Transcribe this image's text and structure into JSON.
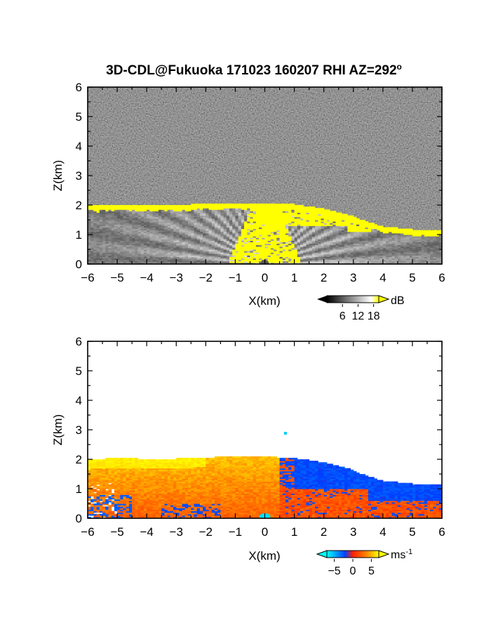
{
  "figure": {
    "title": "3D-CDL@Fukuoka 171023 160207 RHI AZ=292",
    "title_superscript": "o"
  },
  "chart_data": [
    {
      "type": "heatmap",
      "panel": "top",
      "quantity": "backscatter intensity",
      "xlabel": "X(km)",
      "ylabel": "Z(km)",
      "xlim": [
        -6,
        6
      ],
      "ylim": [
        0,
        6
      ],
      "xticks": [
        -6,
        -5,
        -4,
        -3,
        -2,
        -1,
        0,
        1,
        2,
        3,
        4,
        5,
        6
      ],
      "yticks": [
        0,
        1,
        2,
        3,
        4,
        5,
        6
      ],
      "colorbar": {
        "unit": "dB",
        "ticks": [
          6,
          12,
          18
        ],
        "range": [
          0,
          20
        ],
        "colors": [
          "#000000",
          "#ffffff",
          "#ffff00"
        ]
      },
      "echo_top_km": [
        [
          -6,
          1.95
        ],
        [
          -5,
          2.0
        ],
        [
          -4,
          1.97
        ],
        [
          -3,
          1.98
        ],
        [
          -2,
          2.02
        ],
        [
          -1,
          2.05
        ],
        [
          0,
          2.05
        ],
        [
          1,
          2.0
        ],
        [
          2,
          1.85
        ],
        [
          3,
          1.6
        ],
        [
          3.5,
          1.4
        ],
        [
          4,
          1.25
        ],
        [
          5,
          1.15
        ],
        [
          6,
          1.1
        ]
      ],
      "saturated_region": "yellow (>=18 dB) near the top of the boundary layer and above the lidar near X=0"
    },
    {
      "type": "heatmap",
      "panel": "bottom",
      "quantity": "radial (Doppler) velocity",
      "xlabel": "X(km)",
      "ylabel": "Z(km)",
      "xlim": [
        -6,
        6
      ],
      "ylim": [
        0,
        6
      ],
      "xticks": [
        -6,
        -5,
        -4,
        -3,
        -2,
        -1,
        0,
        1,
        2,
        3,
        4,
        5,
        6
      ],
      "yticks": [
        0,
        1,
        2,
        3,
        4,
        5,
        6
      ],
      "colorbar": {
        "unit": "ms",
        "unit_superscript": "-1",
        "ticks": [
          -5,
          0,
          5
        ],
        "range": [
          -7,
          7
        ],
        "colors": [
          "#00ffff",
          "#0000ff",
          "#ff2000",
          "#ffff00"
        ]
      },
      "regions": [
        {
          "x_range": [
            -6,
            0.5
          ],
          "z_range": [
            0,
            2.0
          ],
          "value_approx": 2.5
        },
        {
          "x_range": [
            0.5,
            3.5
          ],
          "z_range": [
            1.0,
            2.0
          ],
          "value_approx": -3
        },
        {
          "x_range": [
            3.5,
            6
          ],
          "z_range": [
            0.6,
            1.2
          ],
          "value_approx": -3
        }
      ]
    }
  ]
}
